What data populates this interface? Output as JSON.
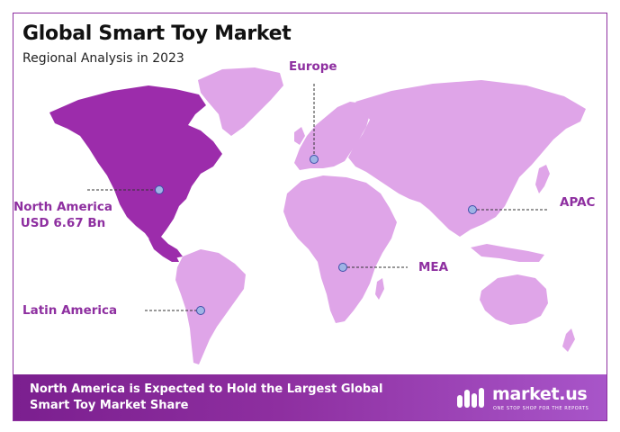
{
  "header": {
    "title": "Global Smart Toy Market",
    "subtitle": "Regional Analysis in 2023"
  },
  "regions": {
    "europe": "Europe",
    "north_america_line1": "North America",
    "north_america_line2": "USD 6.67 Bn",
    "apac": "APAC",
    "mea": "MEA",
    "latin_america": "Latin America"
  },
  "footer": {
    "line1": "North America is Expected to Hold the Largest Global",
    "line2": "Smart Toy Market Share"
  },
  "logo": {
    "name": "market.us",
    "tagline": "ONE STOP SHOP FOR THE REPORTS"
  },
  "colors": {
    "accent": "#8e2fa0",
    "highlight_region": "#9c2cab",
    "other_regions": "#dfa5e8",
    "marker": "#9fb4e6"
  },
  "highlighted_region": "North America"
}
